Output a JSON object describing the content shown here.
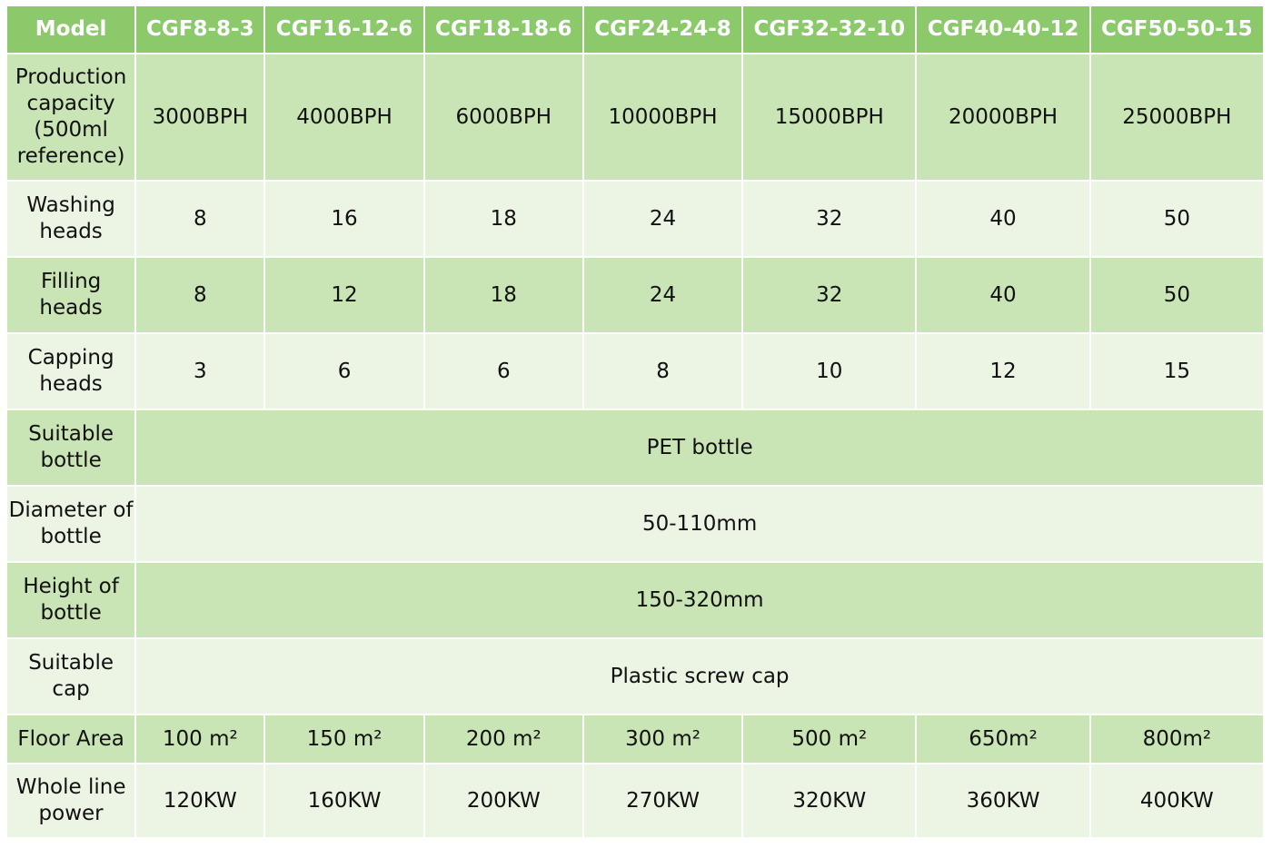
{
  "table": {
    "header": {
      "label": "Model",
      "models": [
        "CGF8-8-3",
        "CGF16-12-6",
        "CGF18-18-6",
        "CGF24-24-8",
        "CGF32-32-10",
        "CGF40-40-12",
        "CGF50-50-15"
      ]
    },
    "rows": {
      "capacity": {
        "label": "Production capacity (500ml reference)",
        "values": [
          "3000BPH",
          "4000BPH",
          "6000BPH",
          "10000BPH",
          "15000BPH",
          "20000BPH",
          "25000BPH"
        ]
      },
      "washing": {
        "label": "Washing heads",
        "values": [
          "8",
          "16",
          "18",
          "24",
          "32",
          "40",
          "50"
        ]
      },
      "filling": {
        "label": "Filling heads",
        "values": [
          "8",
          "12",
          "18",
          "24",
          "32",
          "40",
          "50"
        ]
      },
      "capping": {
        "label": "Capping heads",
        "values": [
          "3",
          "6",
          "6",
          "8",
          "10",
          "12",
          "15"
        ]
      },
      "bottle": {
        "label": "Suitable bottle",
        "value": "PET bottle"
      },
      "diameter": {
        "label": "Diameter of bottle",
        "value": "50-110mm"
      },
      "height": {
        "label": "Height of bottle",
        "value": "150-320mm"
      },
      "cap": {
        "label": "Suitable cap",
        "value": "Plastic screw cap"
      },
      "floor": {
        "label": "Floor Area",
        "values": [
          "100 m²",
          "150 m²",
          "200 m²",
          "300 m²",
          "500 m²",
          "650m²",
          "800m²"
        ]
      },
      "power": {
        "label": "Whole line power",
        "values": [
          "120KW",
          "160KW",
          "200KW",
          "270KW",
          "320KW",
          "360KW",
          "400KW"
        ]
      }
    }
  },
  "colors": {
    "header": "#8cc96a",
    "row_dark": "#c9e4b5",
    "row_light": "#ecf5e3"
  }
}
